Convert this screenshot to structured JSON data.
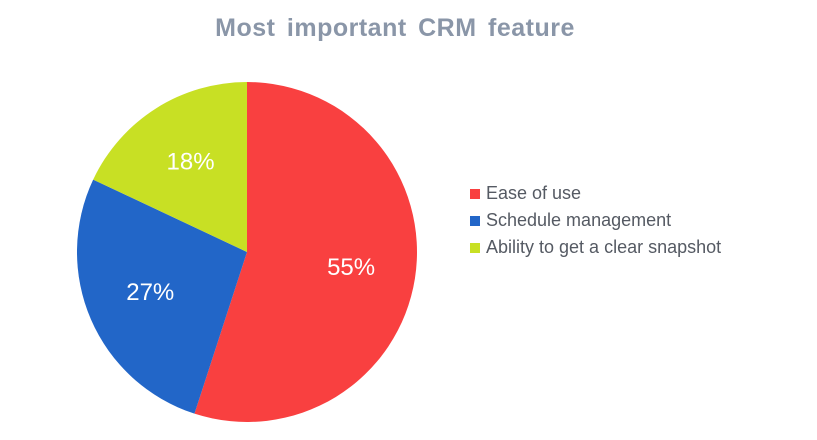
{
  "chart_data": {
    "type": "pie",
    "title": "Most important CRM feature",
    "legend_position": "right",
    "slices": [
      {
        "name": "Ease of use",
        "value": 55,
        "label": "55%",
        "color": "#f94040"
      },
      {
        "name": "Schedule management",
        "value": 27,
        "label": "27%",
        "color": "#2266c8"
      },
      {
        "name": "Ability to get a clear snapshot",
        "value": 18,
        "label": "18%",
        "color": "#c8e024"
      }
    ]
  }
}
